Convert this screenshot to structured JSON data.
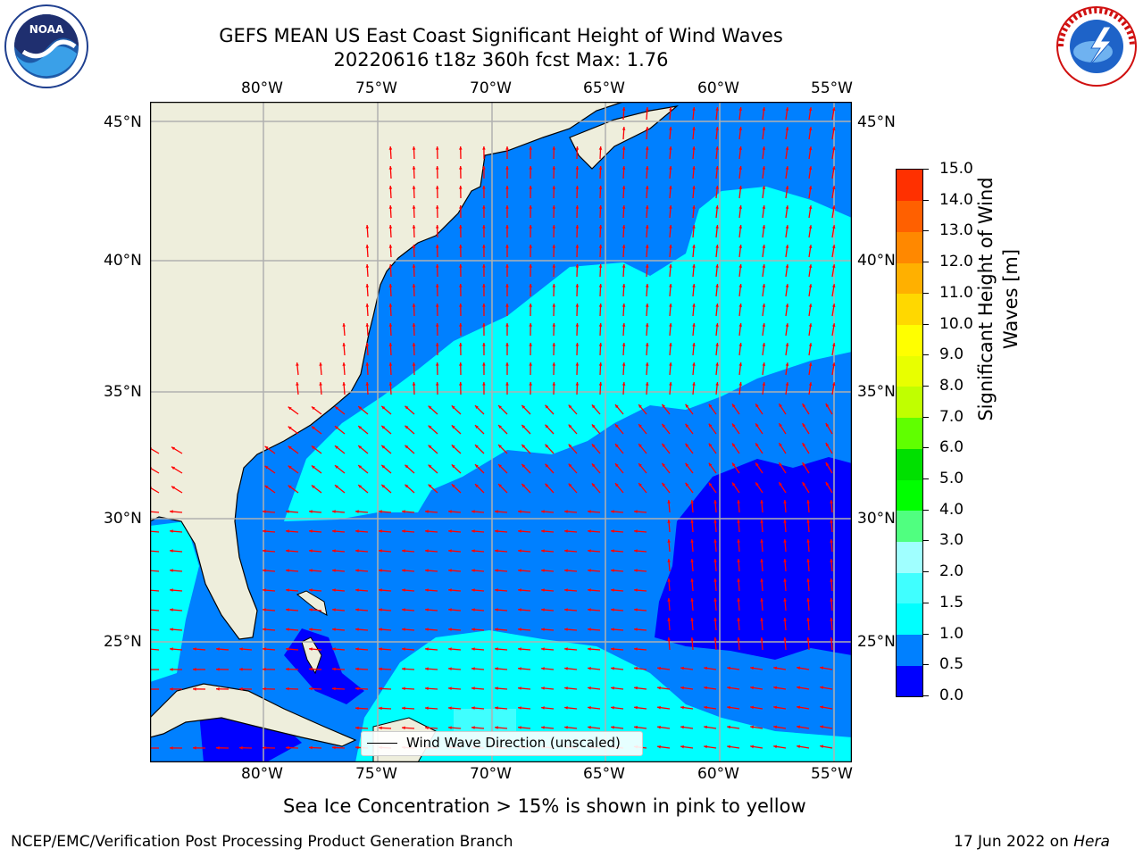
{
  "header": {
    "title_line1": "GEFS MEAN US East Coast Significant Height of Wind Waves",
    "title_line2": "20220616 t18z 360h fcst   Max: 1.76"
  },
  "logos": {
    "left": "NOAA",
    "right": "NATIONAL WEATHER SERVICE"
  },
  "axes": {
    "lon_labels": [
      "80°W",
      "75°W",
      "70°W",
      "65°W",
      "60°W",
      "55°W"
    ],
    "lat_labels": [
      "45°N",
      "40°N",
      "35°N",
      "30°N",
      "25°N"
    ]
  },
  "legend": {
    "text": "Wind Wave Direction (unscaled)"
  },
  "colorbar": {
    "title_line1": "Significant Height of Wind",
    "title_line2": "Waves [m]",
    "ticks": [
      "0.0",
      "0.5",
      "1.0",
      "1.5",
      "2.0",
      "3.0",
      "4.0",
      "5.0",
      "6.0",
      "7.0",
      "8.0",
      "9.0",
      "10.0",
      "11.0",
      "12.0",
      "13.0",
      "14.0",
      "15.0"
    ],
    "colors": [
      "#0000ff",
      "#0080ff",
      "#00ffff",
      "#40ffff",
      "#a0ffff",
      "#50ff80",
      "#00ff00",
      "#00e000",
      "#60ff00",
      "#c0ff00",
      "#e8ff00",
      "#ffff00",
      "#ffd800",
      "#ffb000",
      "#ff8800",
      "#ff6000",
      "#ff3000",
      "#ff0000"
    ]
  },
  "colors": {
    "land": "#eeeedc",
    "arrow": "#ff0000",
    "grid": "#b0b0b0"
  },
  "footer": {
    "note": "Sea Ice Concentration > 15% is shown in pink to yellow",
    "credit": "NCEP/EMC/Verification Post Processing Product Generation Branch",
    "date": "17 Jun 2022 on ",
    "machine": "Hera"
  }
}
